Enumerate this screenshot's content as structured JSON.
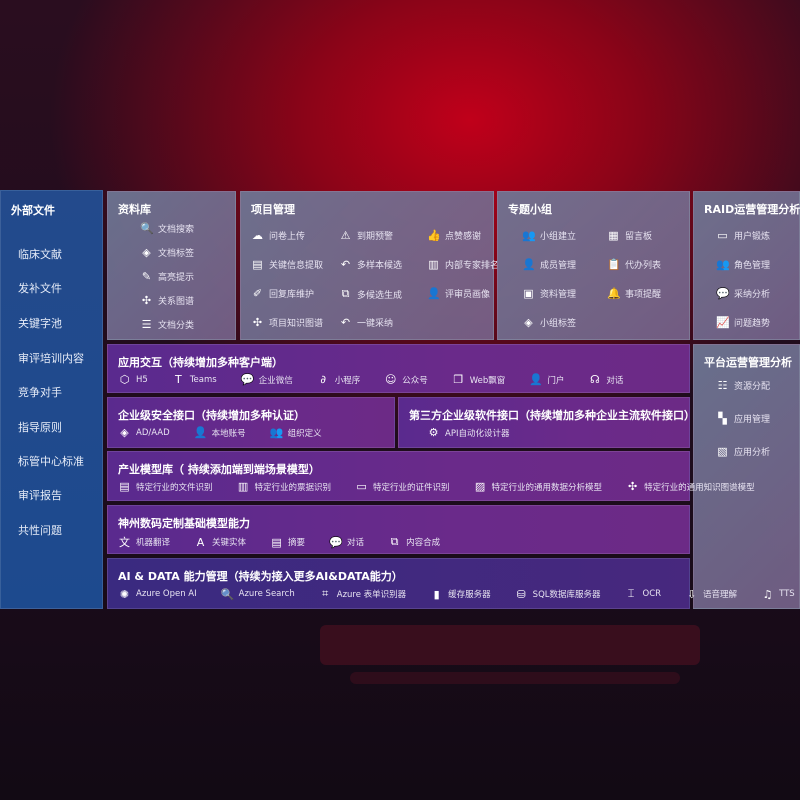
{
  "sidebar": {
    "title": "外部文件",
    "items": [
      "临床文献",
      "发补文件",
      "关键字池",
      "审评培训内容",
      "竞争对手",
      "指导原则",
      "标管中心标准",
      "审评报告",
      "共性问题"
    ]
  },
  "library": {
    "title": "资料库",
    "items": [
      {
        "icon": "doc-search-icon",
        "g": "🔍",
        "label": "文档搜索"
      },
      {
        "icon": "tag-icon",
        "g": "◈",
        "label": "文档标签"
      },
      {
        "icon": "pen-icon",
        "g": "✎",
        "label": "高亮提示"
      },
      {
        "icon": "graph-icon",
        "g": "✣",
        "label": "关系图谱"
      },
      {
        "icon": "doc-classify-icon",
        "g": "☰",
        "label": "文档分类"
      }
    ]
  },
  "project": {
    "title": "项目管理",
    "items": [
      {
        "icon": "upload-cloud-icon",
        "g": "☁",
        "label": "问卷上传"
      },
      {
        "icon": "alarm-icon",
        "g": "⚠",
        "label": "到期预警"
      },
      {
        "icon": "thumbs-up-icon",
        "g": "👍",
        "label": "点赞感谢"
      },
      {
        "icon": "extract-icon",
        "g": "▤",
        "label": "关键信息提取"
      },
      {
        "icon": "reply-icon",
        "g": "↶",
        "label": "多样本候选"
      },
      {
        "icon": "ranking-icon",
        "g": "▥",
        "label": "内部专家排名"
      },
      {
        "icon": "edit-icon",
        "g": "✐",
        "label": "回复库维护"
      },
      {
        "icon": "puzzle-icon",
        "g": "⧉",
        "label": "多候选生成"
      },
      {
        "icon": "person-icon",
        "g": "👤",
        "label": "评审员画像"
      },
      {
        "icon": "knowledge-graph-icon",
        "g": "✣",
        "label": "项目知识图谱"
      },
      {
        "icon": "reply-icon",
        "g": "↶",
        "label": "一键采纳"
      }
    ]
  },
  "group": {
    "title": "专题小组",
    "items": [
      {
        "icon": "group-icon",
        "g": "👥",
        "label": "小组建立"
      },
      {
        "icon": "bbs-icon",
        "g": "▦",
        "label": "留言板"
      },
      {
        "icon": "member-add-icon",
        "g": "👤",
        "label": "成员管理"
      },
      {
        "icon": "clipboard-icon",
        "g": "📋",
        "label": "代办列表"
      },
      {
        "icon": "folder-icon",
        "g": "▣",
        "label": "资料管理"
      },
      {
        "icon": "bell-icon",
        "g": "🔔",
        "label": "事项提醒"
      },
      {
        "icon": "tag-icon",
        "g": "◈",
        "label": "小组标签"
      }
    ]
  },
  "raid": {
    "title": "RAID运营管理分析",
    "items": [
      {
        "icon": "id-card-icon",
        "g": "▭",
        "label": "用户锻炼"
      },
      {
        "icon": "users-icon",
        "g": "👥",
        "label": "角色管理"
      },
      {
        "icon": "qa-icon",
        "g": "💬",
        "label": "采纳分析"
      },
      {
        "icon": "trend-icon",
        "g": "📈",
        "label": "问题趋势"
      }
    ]
  },
  "platform": {
    "title": "平台运营管理分析",
    "items": [
      {
        "icon": "checklist-icon",
        "g": "☷",
        "label": "资源分配"
      },
      {
        "icon": "apps-icon",
        "g": "▚",
        "label": "应用管理"
      },
      {
        "icon": "analysis-icon",
        "g": "▧",
        "label": "应用分析"
      }
    ]
  },
  "interaction": {
    "title": "应用交互（持续增加多种客户端）",
    "items": [
      {
        "icon": "html5-icon",
        "g": "⬡",
        "label": "H5"
      },
      {
        "icon": "teams-icon",
        "g": "T",
        "label": "Teams"
      },
      {
        "icon": "wechat-work-icon",
        "g": "💬",
        "label": "企业微信"
      },
      {
        "icon": "mini-program-icon",
        "g": "∂",
        "label": "小程序"
      },
      {
        "icon": "official-account-icon",
        "g": "☺",
        "label": "公众号"
      },
      {
        "icon": "window-icon",
        "g": "❐",
        "label": "Web飘窗"
      },
      {
        "icon": "portal-icon",
        "g": "👤",
        "label": "门户"
      },
      {
        "icon": "chat-icon",
        "g": "☊",
        "label": "对话"
      }
    ]
  },
  "security": {
    "title": "企业级安全接口（持续增加多种认证）",
    "items": [
      {
        "icon": "ad-icon",
        "g": "◈",
        "label": "AD/AAD"
      },
      {
        "icon": "local-account-icon",
        "g": "👤",
        "label": "本地账号"
      },
      {
        "icon": "org-icon",
        "g": "👥",
        "label": "组织定义"
      }
    ]
  },
  "thirdparty": {
    "title": "第三方企业级软件接口（持续增加多种企业主流软件接口）",
    "items": [
      {
        "icon": "gear-icon",
        "g": "⚙",
        "label": "API自动化设计器"
      }
    ]
  },
  "industry": {
    "title": "产业模型库（ 持续添加端到端场景模型）",
    "items": [
      {
        "icon": "file-icon",
        "g": "▤",
        "label": "特定行业的文件识别"
      },
      {
        "icon": "receipt-icon",
        "g": "▥",
        "label": "特定行业的票据识别"
      },
      {
        "icon": "id-card-icon",
        "g": "▭",
        "label": "特定行业的证件识别"
      },
      {
        "icon": "chart-icon",
        "g": "▨",
        "label": "特定行业的通用数据分析模型"
      },
      {
        "icon": "knowledge-graph-icon",
        "g": "✣",
        "label": "特定行业的通用知识图谱模型"
      }
    ]
  },
  "base": {
    "title": "神州数码定制基础模型能力",
    "items": [
      {
        "icon": "translate-icon",
        "g": "文",
        "label": "机器翻译"
      },
      {
        "icon": "entity-icon",
        "g": "A",
        "label": "关键实体"
      },
      {
        "icon": "summary-icon",
        "g": "▤",
        "label": "摘要"
      },
      {
        "icon": "chat-icon",
        "g": "💬",
        "label": "对话"
      },
      {
        "icon": "compose-icon",
        "g": "⧉",
        "label": "内容合成"
      }
    ]
  },
  "aidata": {
    "title": "AI & DATA 能力管理（持续为接入更多AI&DATA能力）",
    "items": [
      {
        "icon": "openai-icon",
        "g": "✺",
        "label": "Azure Open AI"
      },
      {
        "icon": "search-icon",
        "g": "🔍",
        "label": "Azure Search"
      },
      {
        "icon": "form-recognizer-icon",
        "g": "⌗",
        "label": "Azure 表单识别器"
      },
      {
        "icon": "cache-server-icon",
        "g": "▮",
        "label": "缓存服务器"
      },
      {
        "icon": "sql-icon",
        "g": "⛁",
        "label": "SQL数据库服务器"
      },
      {
        "icon": "ocr-icon",
        "g": "⌶",
        "label": "OCR"
      },
      {
        "icon": "speech-icon",
        "g": "⇩",
        "label": "语音理解"
      },
      {
        "icon": "tts-icon",
        "g": "♫",
        "label": "TTS"
      }
    ]
  }
}
